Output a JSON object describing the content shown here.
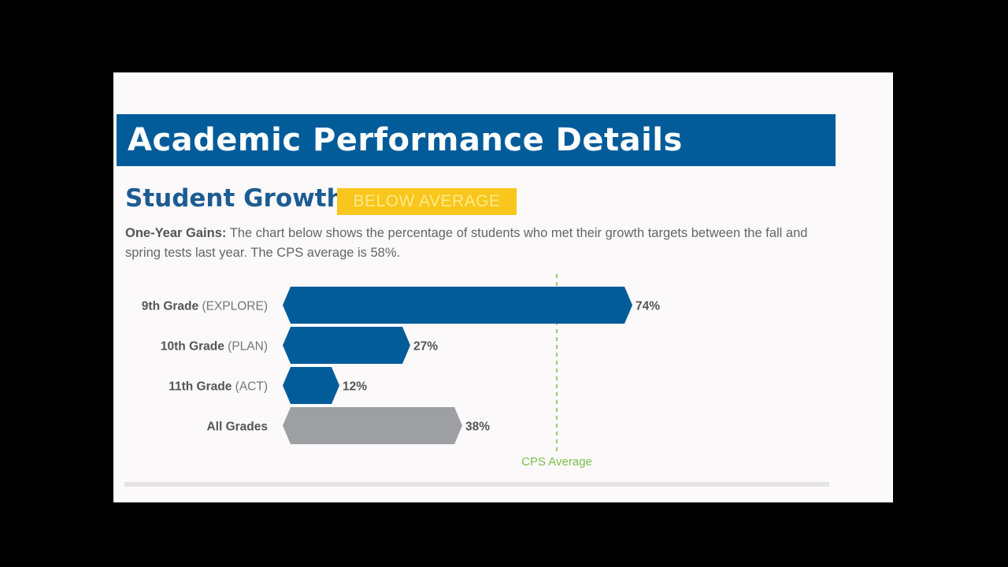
{
  "slide": {
    "title": "Academic Performance Details",
    "section_heading": "Student Growth:",
    "badge_label": "BELOW AVERAGE",
    "description_lead": "One-Year Gains:",
    "description_body": "The chart below shows the percentage of students who met their growth targets between the fall and spring tests last year. The CPS average is 58%."
  },
  "colors": {
    "title_bar": "#035c9a",
    "heading": "#1c5c93",
    "badge": "#f8c61c",
    "bar_primary": "#035c9a",
    "bar_aggregate": "#9d9fa2",
    "average_line": "#7bbf4a"
  },
  "chart_data": {
    "type": "bar",
    "orientation": "horizontal",
    "categories": [
      {
        "name": "9th Grade",
        "sub": "(EXPLORE)"
      },
      {
        "name": "10th Grade",
        "sub": "(PLAN)"
      },
      {
        "name": "11th Grade",
        "sub": "(ACT)"
      },
      {
        "name": "All Grades",
        "sub": ""
      }
    ],
    "values": [
      74,
      27,
      12,
      38
    ],
    "value_labels": [
      "74%",
      "27%",
      "12%",
      "38%"
    ],
    "bar_kinds": [
      "primary",
      "primary",
      "primary",
      "aggregate"
    ],
    "reference_line": {
      "value": 58,
      "label": "CPS Average"
    },
    "xlim": [
      0,
      100
    ],
    "grid": false,
    "legend": "none"
  }
}
